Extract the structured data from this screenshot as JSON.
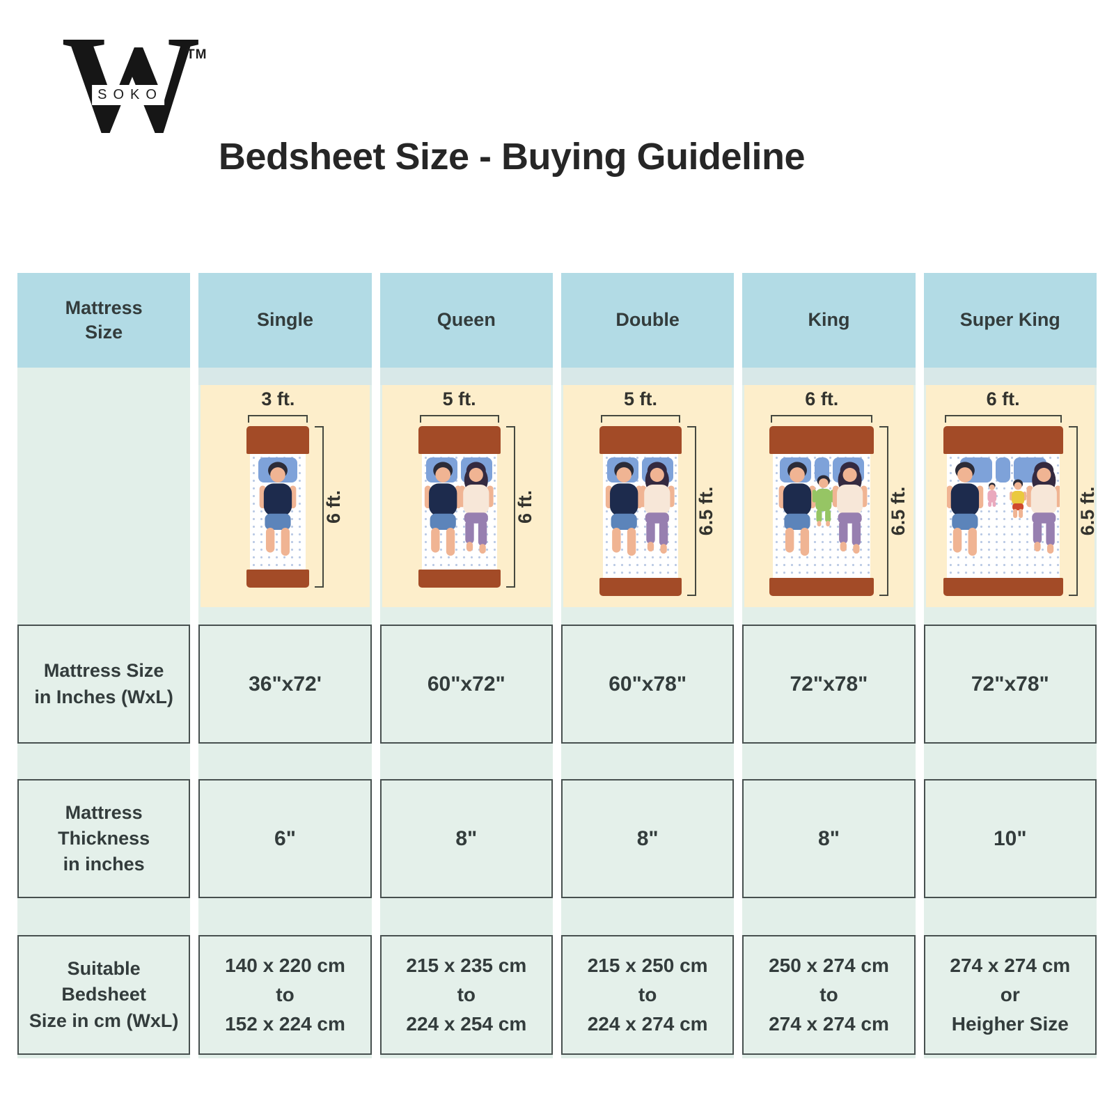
{
  "logo": {
    "letter": "W",
    "sub": "SOKO",
    "tm": "TM"
  },
  "title": "Bedsheet Size - Buying Guideline",
  "colors": {
    "header_bg": "#b2dbe5",
    "strip_bg": "#e2efe9",
    "cell_bg": "#e4f0ea",
    "cell_border": "#47504f",
    "illustration_bg": "#fdeecb",
    "text": "#333c3c",
    "dim_line": "#45483f",
    "bed_frame": "#a34b27",
    "mattress_dot": "#b9c9e4",
    "pillow": "#7ea2d9",
    "skin": "#f0b493",
    "hair": "#2c2c38",
    "man_shirt": "#1d2b4d",
    "man_shorts": "#5c84ba",
    "woman_top": "#f7e7d8",
    "woman_pants": "#977fb0",
    "woman_hair": "#342a40",
    "child_outfit": "#96c564",
    "toddler_shirt": "#eac93f",
    "toddler_shorts": "#cf4a2e",
    "baby_outfit": "#eaa9bd"
  },
  "table": {
    "corner_header": "Mattress\nSize",
    "row_labels": [
      "Mattress Size\nin Inches (WxL)",
      "Mattress\nThickness\nin inches",
      "Suitable\nBedsheet\nSize in cm (WxL)"
    ],
    "columns": [
      {
        "label": "Single",
        "width_label": "3 ft.",
        "height_label": "6 ft.",
        "bed_width": 90,
        "bed_height": 232,
        "pillows": [
          0.78
        ],
        "sleepers": [
          "man"
        ],
        "inches": "36\"x72'",
        "thickness": "6\"",
        "bedsheet": "140 x 220 cm\nto\n152 x 224 cm"
      },
      {
        "label": "Queen",
        "width_label": "5 ft.",
        "height_label": "6 ft.",
        "bed_width": 118,
        "bed_height": 232,
        "pillows": [
          0.45,
          0.45
        ],
        "sleepers": [
          "man",
          "woman"
        ],
        "inches": "60\"x72\"",
        "thickness": "8\"",
        "bedsheet": "215 x 235 cm\nto\n224 x 254 cm"
      },
      {
        "label": "Double",
        "width_label": "5 ft.",
        "height_label": "6.5 ft.",
        "bed_width": 118,
        "bed_height": 244,
        "pillows": [
          0.45,
          0.45
        ],
        "sleepers": [
          "man",
          "woman"
        ],
        "inches": "60\"x78\"",
        "thickness": "8\"",
        "bedsheet": "215 x 250 cm\nto\n224 x 274 cm"
      },
      {
        "label": "King",
        "width_label": "6 ft.",
        "height_label": "6.5 ft.",
        "bed_width": 150,
        "bed_height": 244,
        "pillows": [
          0.34,
          0.16,
          0.34
        ],
        "sleepers": [
          "man",
          "child",
          "woman"
        ],
        "inches": "72\"x78\"",
        "thickness": "8\"",
        "bedsheet": "250 x 274 cm\nto\n274 x 274 cm"
      },
      {
        "label": "Super King",
        "width_label": "6 ft.",
        "height_label": "6.5 ft.",
        "bed_width": 172,
        "bed_height": 244,
        "pillows": [
          0.3,
          0.14,
          0.3
        ],
        "sleepers": [
          "man",
          "baby",
          "toddler",
          "woman"
        ],
        "inches": "72\"x78\"",
        "thickness": "10\"",
        "bedsheet": "274 x 274 cm\nor\nHeigher Size"
      }
    ]
  }
}
